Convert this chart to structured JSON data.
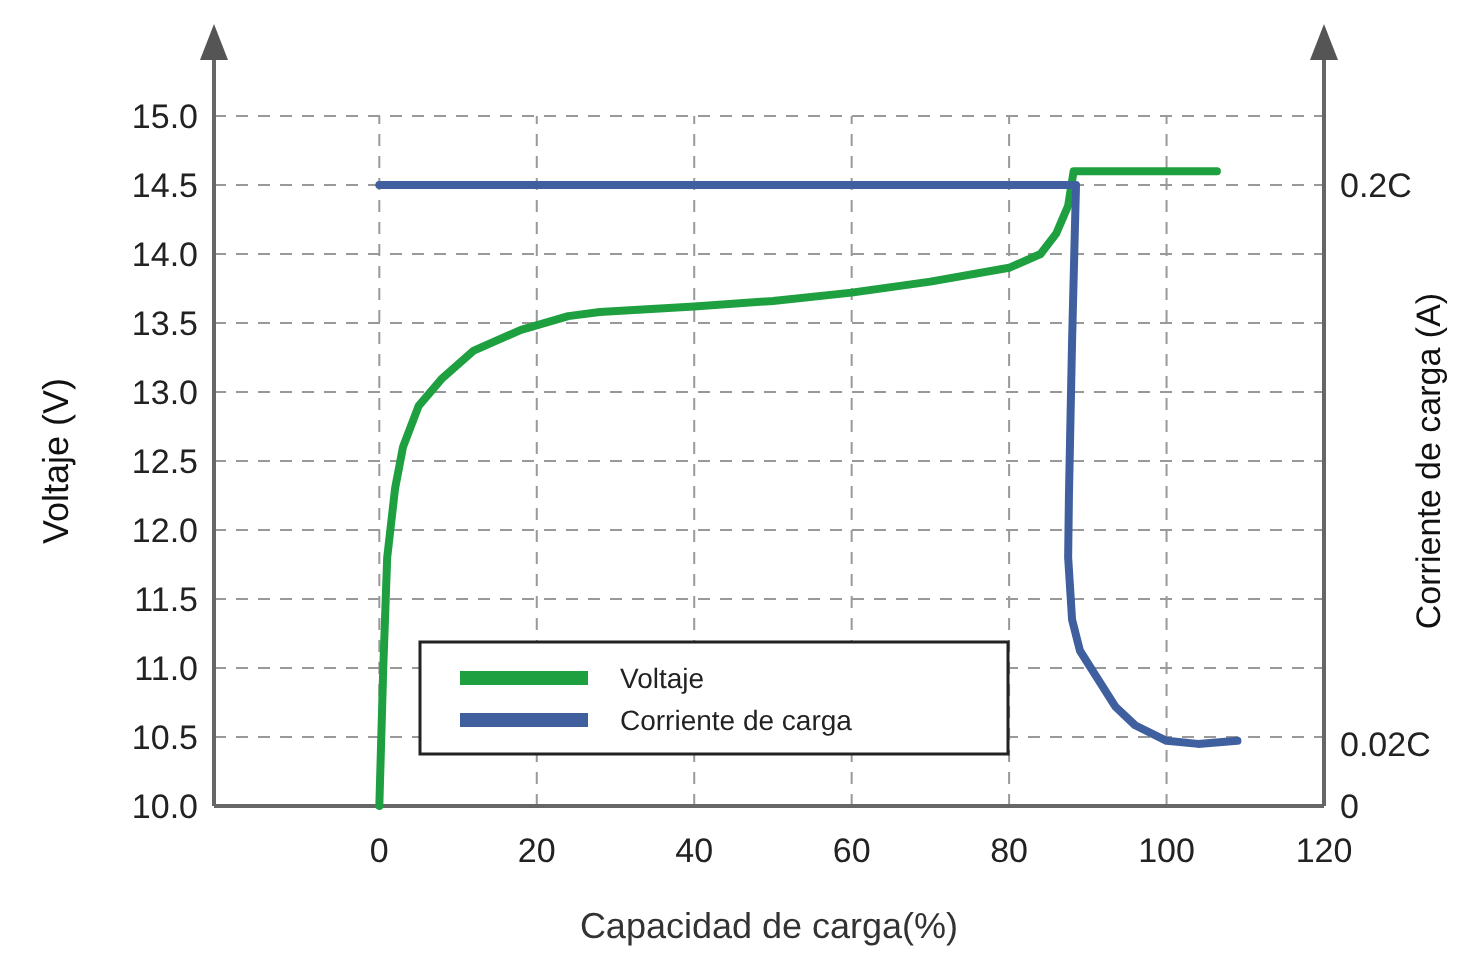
{
  "chart_data": {
    "type": "line",
    "xlabel": "Capacidad de carga(%)",
    "ylabel": "Voltaje (V)",
    "y2label": "Corriente de carga (A)",
    "xlim": [
      -21,
      120
    ],
    "xticks": [
      0,
      20,
      40,
      60,
      80,
      100,
      120
    ],
    "ylim": [
      10,
      15
    ],
    "yticks": [
      {
        "value": 10,
        "label": "10.0"
      },
      {
        "value": 10.5,
        "label": "10.5"
      },
      {
        "value": 11,
        "label": "11.0"
      },
      {
        "value": 11.5,
        "label": "11.5"
      },
      {
        "value": 12,
        "label": "12.0"
      },
      {
        "value": 12.5,
        "label": "12.5"
      },
      {
        "value": 13,
        "label": "13.0"
      },
      {
        "value": 13.5,
        "label": "13.5"
      },
      {
        "value": 14,
        "label": "14.0"
      },
      {
        "value": 14.5,
        "label": "14.5"
      },
      {
        "value": 15,
        "label": "15.0"
      }
    ],
    "y2lim": [
      0,
      0.2222
    ],
    "y2ticks": [
      0,
      {
        "value": 0.02,
        "label": "0.02C"
      },
      {
        "value": 0.2,
        "label": "0.2C"
      }
    ],
    "grid": true,
    "legend": "bottom",
    "marker": "none",
    "line_style": "solid",
    "series": [
      {
        "name": "Voltaje",
        "color": "#1fa040",
        "x": [
          0,
          0.5,
          1,
          2,
          3,
          5,
          8,
          12,
          18,
          24,
          28,
          40,
          50,
          60,
          70,
          80,
          84,
          86,
          87.5,
          88.2,
          106.4
        ],
        "values": [
          10.0,
          11.0,
          11.8,
          12.3,
          12.6,
          12.9,
          13.1,
          13.3,
          13.45,
          13.55,
          13.58,
          13.62,
          13.66,
          13.72,
          13.8,
          13.9,
          14.0,
          14.15,
          14.35,
          14.6,
          14.6
        ]
      },
      {
        "name": "Corriente de carga",
        "color": "#3f5f9f",
        "axis": "y2",
        "x": [
          0,
          88.5,
          88,
          87.6,
          87.5,
          88,
          89,
          91,
          93.5,
          96,
          100,
          104,
          109
        ],
        "values": [
          0.2,
          0.2,
          0.15,
          0.1,
          0.08,
          0.06,
          0.05,
          0.042,
          0.032,
          0.026,
          0.021,
          0.02,
          0.021
        ]
      }
    ]
  }
}
